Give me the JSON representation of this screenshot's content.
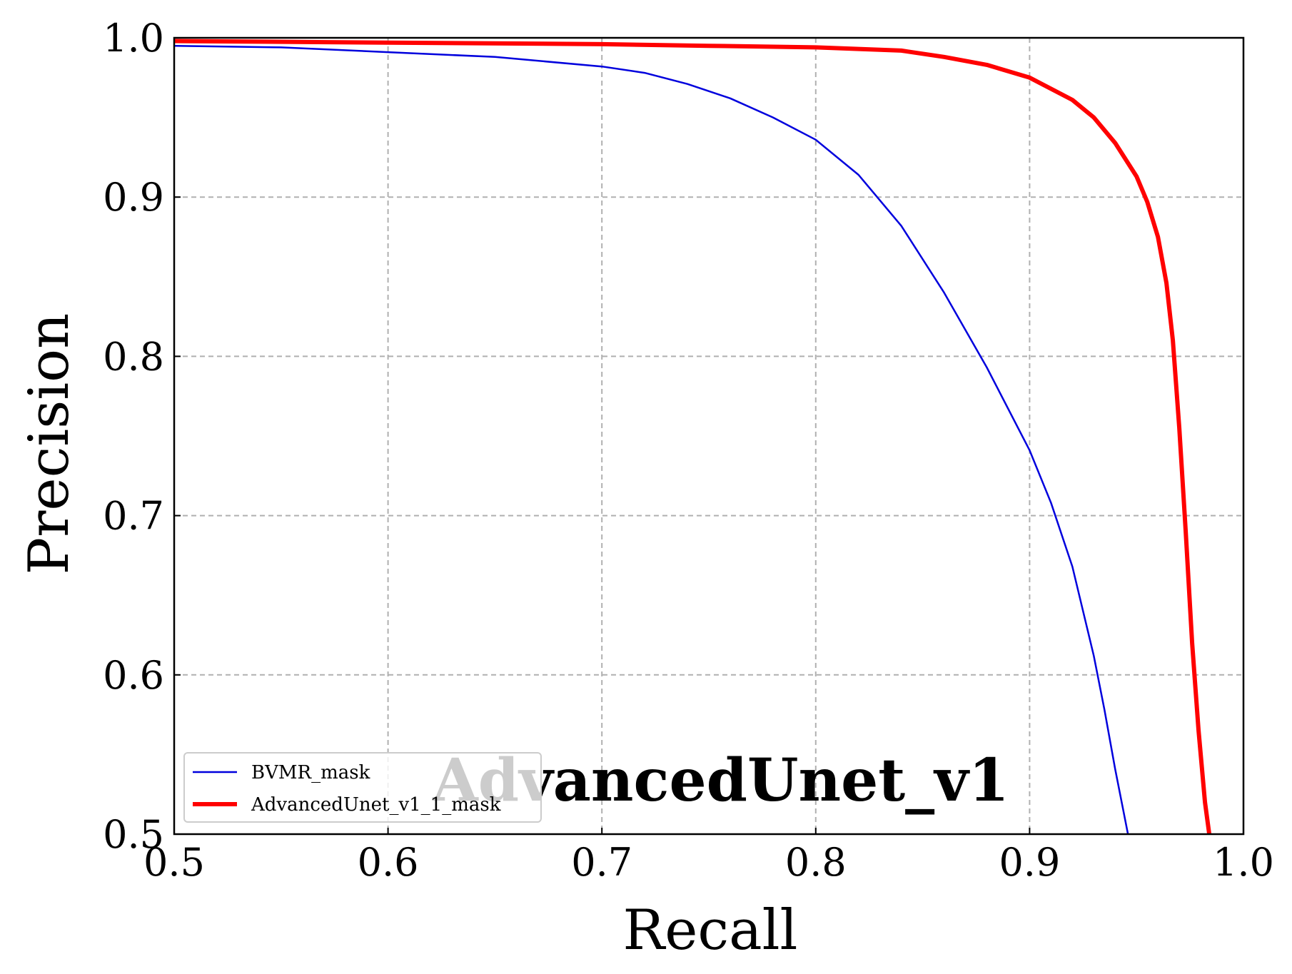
{
  "chart_data": {
    "type": "line",
    "title": "",
    "annotation": "AdvancedUnet_v1",
    "xlabel": "Recall",
    "ylabel": "Precision",
    "xlim": [
      0.5,
      1.0
    ],
    "ylim": [
      0.5,
      1.0
    ],
    "xticks": [
      "0.5",
      "0.6",
      "0.7",
      "0.8",
      "0.9",
      "1.0"
    ],
    "yticks": [
      "0.5",
      "0.6",
      "0.7",
      "0.8",
      "0.9",
      "1.0"
    ],
    "grid": true,
    "legend_position": "lower-left",
    "series": [
      {
        "name": "BVMR_mask",
        "color": "#0000dd",
        "line_width": "thin",
        "points": [
          [
            0.5,
            0.995
          ],
          [
            0.55,
            0.994
          ],
          [
            0.6,
            0.991
          ],
          [
            0.65,
            0.988
          ],
          [
            0.7,
            0.982
          ],
          [
            0.72,
            0.978
          ],
          [
            0.74,
            0.971
          ],
          [
            0.76,
            0.962
          ],
          [
            0.78,
            0.95
          ],
          [
            0.8,
            0.936
          ],
          [
            0.82,
            0.914
          ],
          [
            0.84,
            0.882
          ],
          [
            0.86,
            0.84
          ],
          [
            0.88,
            0.793
          ],
          [
            0.9,
            0.741
          ],
          [
            0.91,
            0.708
          ],
          [
            0.92,
            0.668
          ],
          [
            0.93,
            0.612
          ],
          [
            0.935,
            0.578
          ],
          [
            0.94,
            0.541
          ],
          [
            0.946,
            0.5
          ]
        ]
      },
      {
        "name": "AdvancedUnet_v1_1_mask",
        "color": "#ff0000",
        "line_width": "thick",
        "points": [
          [
            0.5,
            0.998
          ],
          [
            0.6,
            0.997
          ],
          [
            0.7,
            0.996
          ],
          [
            0.75,
            0.995
          ],
          [
            0.8,
            0.994
          ],
          [
            0.84,
            0.992
          ],
          [
            0.86,
            0.988
          ],
          [
            0.88,
            0.983
          ],
          [
            0.9,
            0.975
          ],
          [
            0.92,
            0.961
          ],
          [
            0.93,
            0.95
          ],
          [
            0.94,
            0.934
          ],
          [
            0.95,
            0.913
          ],
          [
            0.955,
            0.897
          ],
          [
            0.96,
            0.875
          ],
          [
            0.964,
            0.846
          ],
          [
            0.967,
            0.81
          ],
          [
            0.97,
            0.755
          ],
          [
            0.973,
            0.69
          ],
          [
            0.976,
            0.62
          ],
          [
            0.979,
            0.565
          ],
          [
            0.982,
            0.52
          ],
          [
            0.984,
            0.5
          ]
        ]
      }
    ]
  }
}
